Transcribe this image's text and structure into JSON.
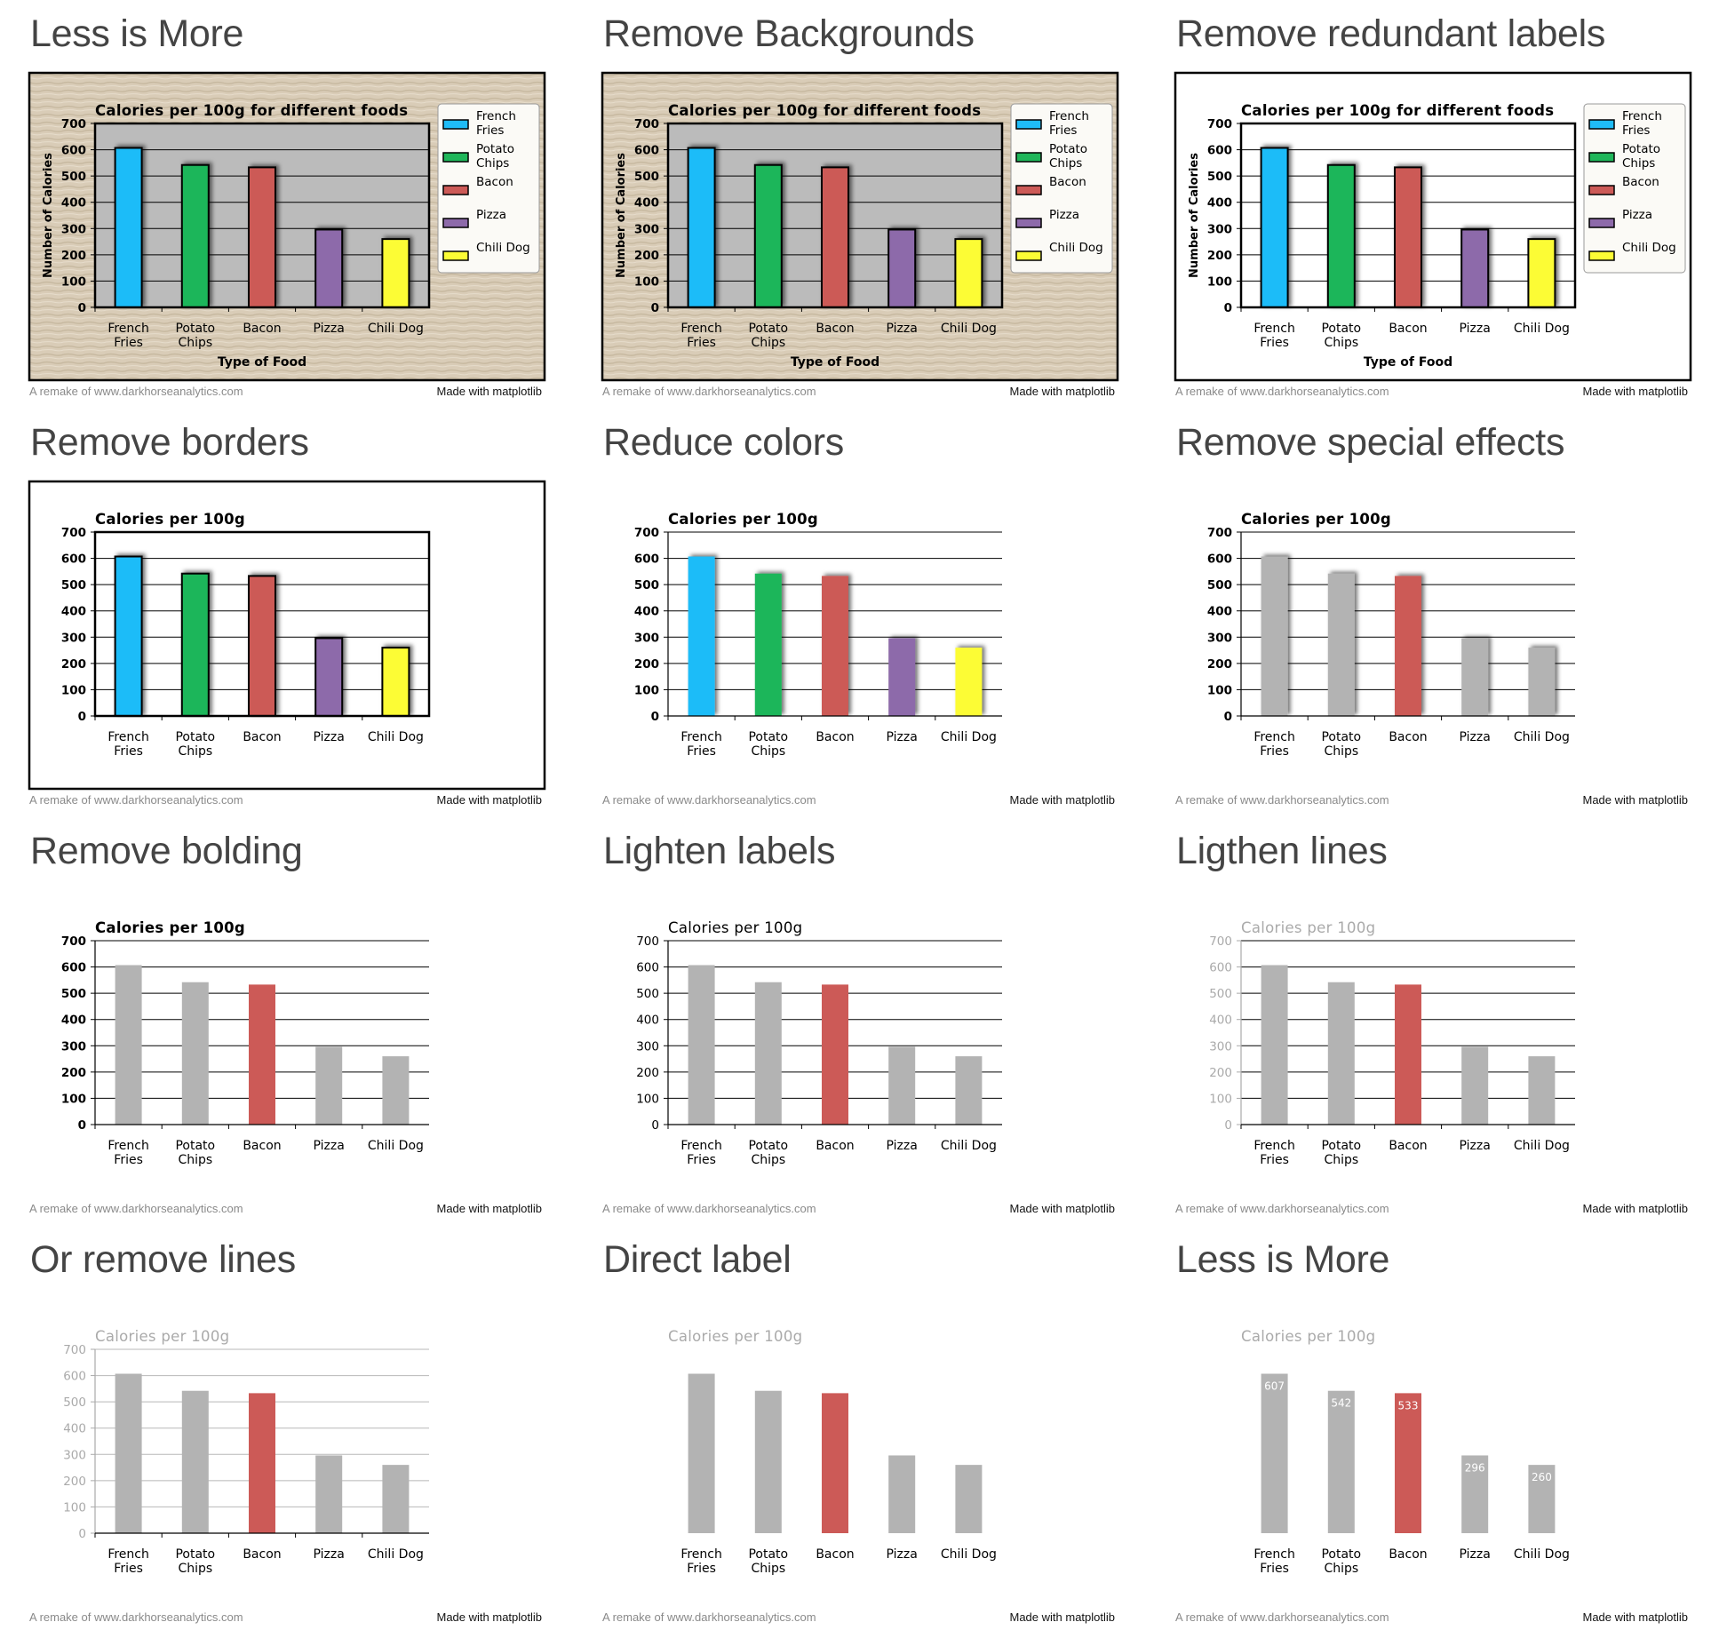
{
  "footer": {
    "credit": "A remake of www.darkhorseanalytics.com",
    "made_with": "Made with matplotlib"
  },
  "colors": {
    "fries": "#1fbcf8",
    "chips": "#1fb65a",
    "bacon": "#cc5a57",
    "pizza": "#8d6aaa",
    "chili": "#fcfc35",
    "grey": "#b3b3b3",
    "plot_bg": "#bbbbbb",
    "paper": "#d9ccb7"
  },
  "chart_data": [
    {
      "type": "bar",
      "panel_title": "Less is More",
      "background": "texture",
      "border": true,
      "legend": "right",
      "title": "Calories per 100g for different foods",
      "xlabel": "Type of Food",
      "ylabel": "Number of Calories",
      "categories": [
        "French Fries",
        "Potato Chips",
        "Bacon",
        "Pizza",
        "Chili Dog"
      ],
      "values": [
        607,
        542,
        533,
        296,
        260
      ],
      "ylim": [
        0,
        700
      ],
      "yticks": [
        "0",
        "100",
        "200",
        "300",
        "400",
        "500",
        "600",
        "700"
      ],
      "bar_colors": [
        "fries",
        "chips",
        "bacon",
        "pizza",
        "chili"
      ],
      "bar_edges": true,
      "shadow": true,
      "grid": "major",
      "grid_color": "#000000",
      "plot_background": "plot_bg",
      "frame": true,
      "bold": true,
      "label_color": "#000000",
      "legend_entries": [
        "French Fries",
        "Potato Chips",
        "Bacon",
        "Pizza",
        "Chili Dog"
      ]
    },
    {
      "type": "bar",
      "panel_title": "Remove Backgrounds",
      "background": "texture",
      "border": true,
      "legend": "right",
      "title": "Calories per 100g for different foods",
      "xlabel": "Type of Food",
      "ylabel": "Number of Calories",
      "categories": [
        "French Fries",
        "Potato Chips",
        "Bacon",
        "Pizza",
        "Chili Dog"
      ],
      "values": [
        607,
        542,
        533,
        296,
        260
      ],
      "ylim": [
        0,
        700
      ],
      "yticks": [
        "0",
        "100",
        "200",
        "300",
        "400",
        "500",
        "600",
        "700"
      ],
      "bar_colors": [
        "fries",
        "chips",
        "bacon",
        "pizza",
        "chili"
      ],
      "bar_edges": true,
      "shadow": true,
      "grid": "major",
      "grid_color": "#000000",
      "plot_background": "plot_bg",
      "frame": true,
      "bold": true,
      "label_color": "#000000",
      "legend_entries": [
        "French Fries",
        "Potato Chips",
        "Bacon",
        "Pizza",
        "Chili Dog"
      ]
    },
    {
      "type": "bar",
      "panel_title": "Remove redundant labels",
      "background": "white",
      "border": true,
      "legend": "right",
      "title": "Calories per 100g for different foods",
      "xlabel": "Type of Food",
      "ylabel": "Number of Calories",
      "categories": [
        "French Fries",
        "Potato Chips",
        "Bacon",
        "Pizza",
        "Chili Dog"
      ],
      "values": [
        607,
        542,
        533,
        296,
        260
      ],
      "ylim": [
        0,
        700
      ],
      "yticks": [
        "0",
        "100",
        "200",
        "300",
        "400",
        "500",
        "600",
        "700"
      ],
      "bar_colors": [
        "fries",
        "chips",
        "bacon",
        "pizza",
        "chili"
      ],
      "bar_edges": true,
      "shadow": true,
      "grid": "major",
      "grid_color": "#000000",
      "plot_background": "none",
      "frame": true,
      "bold": true,
      "label_color": "#000000",
      "legend_entries": [
        "French Fries",
        "Potato Chips",
        "Bacon",
        "Pizza",
        "Chili Dog"
      ]
    },
    {
      "type": "bar",
      "panel_title": "Remove borders",
      "background": "white",
      "border": true,
      "legend": "none",
      "title": "Calories per 100g",
      "xlabel": "",
      "ylabel": "",
      "categories": [
        "French Fries",
        "Potato Chips",
        "Bacon",
        "Pizza",
        "Chili Dog"
      ],
      "values": [
        607,
        542,
        533,
        296,
        260
      ],
      "ylim": [
        0,
        700
      ],
      "yticks": [
        "0",
        "100",
        "200",
        "300",
        "400",
        "500",
        "600",
        "700"
      ],
      "bar_colors": [
        "fries",
        "chips",
        "bacon",
        "pizza",
        "chili"
      ],
      "bar_edges": true,
      "shadow": true,
      "grid": "major",
      "grid_color": "#000000",
      "plot_background": "none",
      "frame": true,
      "bold": true,
      "label_color": "#000000",
      "legend_entries": []
    },
    {
      "type": "bar",
      "panel_title": "Reduce colors",
      "background": "white",
      "border": false,
      "legend": "none",
      "title": "Calories per 100g",
      "xlabel": "",
      "ylabel": "",
      "categories": [
        "French Fries",
        "Potato Chips",
        "Bacon",
        "Pizza",
        "Chili Dog"
      ],
      "values": [
        607,
        542,
        533,
        296,
        260
      ],
      "ylim": [
        0,
        700
      ],
      "yticks": [
        "0",
        "100",
        "200",
        "300",
        "400",
        "500",
        "600",
        "700"
      ],
      "bar_colors": [
        "fries",
        "chips",
        "bacon",
        "pizza",
        "chili"
      ],
      "bar_edges": false,
      "shadow": true,
      "grid": "major",
      "grid_color": "#000000",
      "plot_background": "none",
      "frame": false,
      "bold": true,
      "label_color": "#000000",
      "legend_entries": []
    },
    {
      "type": "bar",
      "panel_title": "Remove special effects",
      "background": "white",
      "border": false,
      "legend": "none",
      "title": "Calories per 100g",
      "xlabel": "",
      "ylabel": "",
      "categories": [
        "French Fries",
        "Potato Chips",
        "Bacon",
        "Pizza",
        "Chili Dog"
      ],
      "values": [
        607,
        542,
        533,
        296,
        260
      ],
      "ylim": [
        0,
        700
      ],
      "yticks": [
        "0",
        "100",
        "200",
        "300",
        "400",
        "500",
        "600",
        "700"
      ],
      "bar_colors": [
        "grey",
        "grey",
        "bacon",
        "grey",
        "grey"
      ],
      "bar_edges": false,
      "shadow": true,
      "grid": "major",
      "grid_color": "#000000",
      "plot_background": "none",
      "frame": false,
      "bold": true,
      "label_color": "#000000",
      "legend_entries": []
    },
    {
      "type": "bar",
      "panel_title": "Remove bolding",
      "background": "white",
      "border": false,
      "legend": "none",
      "title": "Calories per 100g",
      "xlabel": "",
      "ylabel": "",
      "categories": [
        "French Fries",
        "Potato Chips",
        "Bacon",
        "Pizza",
        "Chili Dog"
      ],
      "values": [
        607,
        542,
        533,
        296,
        260
      ],
      "ylim": [
        0,
        700
      ],
      "yticks": [
        "0",
        "100",
        "200",
        "300",
        "400",
        "500",
        "600",
        "700"
      ],
      "bar_colors": [
        "grey",
        "grey",
        "bacon",
        "grey",
        "grey"
      ],
      "bar_edges": false,
      "shadow": false,
      "grid": "major",
      "grid_color": "#000000",
      "plot_background": "none",
      "frame": false,
      "bold": true,
      "label_color": "#000000",
      "legend_entries": []
    },
    {
      "type": "bar",
      "panel_title": "Lighten labels",
      "background": "white",
      "border": false,
      "legend": "none",
      "title": "Calories per 100g",
      "xlabel": "",
      "ylabel": "",
      "categories": [
        "French Fries",
        "Potato Chips",
        "Bacon",
        "Pizza",
        "Chili Dog"
      ],
      "values": [
        607,
        542,
        533,
        296,
        260
      ],
      "ylim": [
        0,
        700
      ],
      "yticks": [
        "0",
        "100",
        "200",
        "300",
        "400",
        "500",
        "600",
        "700"
      ],
      "bar_colors": [
        "grey",
        "grey",
        "bacon",
        "grey",
        "grey"
      ],
      "bar_edges": false,
      "shadow": false,
      "grid": "major",
      "grid_color": "#000000",
      "plot_background": "none",
      "frame": false,
      "bold": false,
      "label_color": "#000000",
      "legend_entries": []
    },
    {
      "type": "bar",
      "panel_title": "Ligthen lines",
      "background": "white",
      "border": false,
      "legend": "none",
      "title": "Calories per 100g",
      "xlabel": "",
      "ylabel": "",
      "categories": [
        "French Fries",
        "Potato Chips",
        "Bacon",
        "Pizza",
        "Chili Dog"
      ],
      "values": [
        607,
        542,
        533,
        296,
        260
      ],
      "ylim": [
        0,
        700
      ],
      "yticks": [
        "0",
        "100",
        "200",
        "300",
        "400",
        "500",
        "600",
        "700"
      ],
      "bar_colors": [
        "grey",
        "grey",
        "bacon",
        "grey",
        "grey"
      ],
      "bar_edges": false,
      "shadow": false,
      "grid": "major",
      "grid_color": "#000000",
      "plot_background": "none",
      "frame": false,
      "bold": false,
      "label_color": "#aaaaaa",
      "legend_entries": []
    },
    {
      "type": "bar",
      "panel_title": "Or remove lines",
      "background": "white",
      "border": false,
      "legend": "none",
      "title": "Calories per 100g",
      "xlabel": "",
      "ylabel": "",
      "categories": [
        "French Fries",
        "Potato Chips",
        "Bacon",
        "Pizza",
        "Chili Dog"
      ],
      "values": [
        607,
        542,
        533,
        296,
        260
      ],
      "ylim": [
        0,
        700
      ],
      "yticks": [
        "0",
        "100",
        "200",
        "300",
        "400",
        "500",
        "600",
        "700"
      ],
      "bar_colors": [
        "grey",
        "grey",
        "bacon",
        "grey",
        "grey"
      ],
      "bar_edges": false,
      "shadow": false,
      "grid": "major",
      "grid_color": "#b8b8b8",
      "plot_background": "none",
      "frame": false,
      "bold": false,
      "label_color": "#aaaaaa",
      "legend_entries": []
    },
    {
      "type": "bar",
      "panel_title": "Direct label",
      "background": "white",
      "border": false,
      "legend": "none",
      "title": "Calories per 100g",
      "xlabel": "",
      "ylabel": "",
      "categories": [
        "French Fries",
        "Potato Chips",
        "Bacon",
        "Pizza",
        "Chili Dog"
      ],
      "values": [
        607,
        542,
        533,
        296,
        260
      ],
      "ylim": [
        0,
        700
      ],
      "yticks": [],
      "bar_colors": [
        "grey",
        "grey",
        "bacon",
        "grey",
        "grey"
      ],
      "bar_edges": false,
      "shadow": false,
      "grid": "none",
      "grid_color": "#000000",
      "plot_background": "none",
      "frame": false,
      "bold": false,
      "label_color": "#aaaaaa",
      "legend_entries": []
    },
    {
      "type": "bar",
      "panel_title": "Less is More",
      "background": "white",
      "border": false,
      "legend": "none",
      "title": "Calories per 100g",
      "xlabel": "",
      "ylabel": "",
      "categories": [
        "French Fries",
        "Potato Chips",
        "Bacon",
        "Pizza",
        "Chili Dog"
      ],
      "values": [
        607,
        542,
        533,
        296,
        260
      ],
      "ylim": [
        0,
        700
      ],
      "yticks": [],
      "bar_colors": [
        "grey",
        "grey",
        "bacon",
        "grey",
        "grey"
      ],
      "bar_edges": false,
      "shadow": false,
      "grid": "none",
      "grid_color": "#000000",
      "plot_background": "none",
      "frame": false,
      "bold": false,
      "label_color": "#aaaaaa",
      "data_labels": [
        "607",
        "542",
        "533",
        "296",
        "260"
      ],
      "legend_entries": []
    }
  ]
}
